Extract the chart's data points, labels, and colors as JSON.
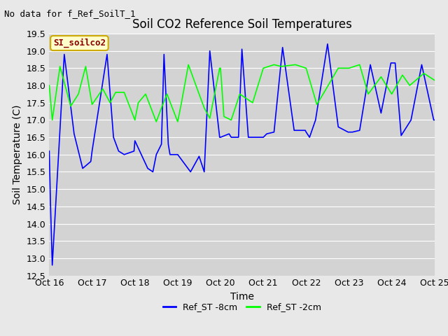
{
  "title": "Soil CO2 Reference Soil Temperatures",
  "xlabel": "Time",
  "ylabel": "Soil Temperature (C)",
  "no_data_text": "No data for f_Ref_SoilT_1",
  "legend_label_text": "SI_soilco2",
  "legend_entries": [
    "Ref_ST -8cm",
    "Ref_ST -2cm"
  ],
  "ylim": [
    12.5,
    19.5
  ],
  "yticks": [
    12.5,
    13.0,
    13.5,
    14.0,
    14.5,
    15.0,
    15.5,
    16.0,
    16.5,
    17.0,
    17.5,
    18.0,
    18.5,
    19.0,
    19.5
  ],
  "x_tick_positions": [
    0,
    1,
    2,
    3,
    4,
    5,
    6,
    7,
    8,
    9
  ],
  "x_tick_labels": [
    "Oct 16",
    "Oct 17",
    "Oct 18",
    "Oct 19",
    "Oct 20",
    "Oct 21",
    "Oct 22",
    "Oct 23",
    "Oct 24",
    "Oct 25"
  ],
  "fig_bg_color": "#e8e8e8",
  "plot_bg_color": "#d3d3d3",
  "title_fontsize": 12,
  "axis_label_fontsize": 10,
  "tick_fontsize": 9,
  "no_data_fontsize": 9,
  "blue_x": [
    0.0,
    0.03,
    0.07,
    0.35,
    0.58,
    0.78,
    0.97,
    1.0,
    1.35,
    1.5,
    1.62,
    1.75,
    1.98,
    2.0,
    2.3,
    2.42,
    2.5,
    2.62,
    2.68,
    2.78,
    2.82,
    3.0,
    3.3,
    3.5,
    3.62,
    3.75,
    3.98,
    4.0,
    4.2,
    4.25,
    4.42,
    4.5,
    4.65,
    4.78,
    5.0,
    5.08,
    5.25,
    5.45,
    5.72,
    5.98,
    6.0,
    6.08,
    6.22,
    6.5,
    6.75,
    6.98,
    7.0,
    7.08,
    7.25,
    7.5,
    7.75,
    7.98,
    8.0,
    8.08,
    8.22,
    8.45,
    8.7,
    8.98,
    9.0
  ],
  "blue_y": [
    16.1,
    14.5,
    12.8,
    18.9,
    16.6,
    15.6,
    15.8,
    16.1,
    18.9,
    16.5,
    16.1,
    16.0,
    16.1,
    16.4,
    15.6,
    15.5,
    16.0,
    16.3,
    18.9,
    16.3,
    16.0,
    16.0,
    15.5,
    15.95,
    15.5,
    19.0,
    16.5,
    16.5,
    16.6,
    16.5,
    16.5,
    19.05,
    16.5,
    16.5,
    16.5,
    16.6,
    16.65,
    19.1,
    16.7,
    16.7,
    16.65,
    16.5,
    17.0,
    19.2,
    16.8,
    16.65,
    16.65,
    16.65,
    16.7,
    18.6,
    17.2,
    18.65,
    18.65,
    18.65,
    16.55,
    17.0,
    18.6,
    17.0,
    17.0
  ],
  "green_x": [
    0.0,
    0.07,
    0.25,
    0.5,
    0.68,
    0.85,
    1.0,
    1.25,
    1.42,
    1.55,
    1.75,
    2.0,
    2.08,
    2.25,
    2.5,
    2.62,
    2.75,
    3.0,
    3.08,
    3.25,
    3.5,
    3.62,
    3.75,
    3.98,
    4.0,
    4.08,
    4.25,
    4.45,
    4.75,
    5.0,
    5.25,
    5.42,
    5.75,
    6.0,
    6.25,
    6.42,
    6.75,
    7.0,
    7.25,
    7.45,
    7.75,
    8.0,
    8.25,
    8.42,
    8.75,
    9.0
  ],
  "green_y": [
    18.0,
    17.0,
    18.55,
    17.4,
    17.75,
    18.55,
    17.45,
    17.9,
    17.5,
    17.8,
    17.8,
    17.0,
    17.5,
    17.75,
    16.95,
    17.35,
    17.75,
    16.95,
    17.45,
    18.6,
    17.75,
    17.35,
    17.05,
    18.5,
    18.5,
    17.1,
    17.0,
    17.75,
    17.5,
    18.5,
    18.6,
    18.55,
    18.6,
    18.5,
    17.45,
    17.8,
    18.5,
    18.5,
    18.6,
    17.75,
    18.25,
    17.75,
    18.3,
    18.0,
    18.35,
    18.15
  ]
}
